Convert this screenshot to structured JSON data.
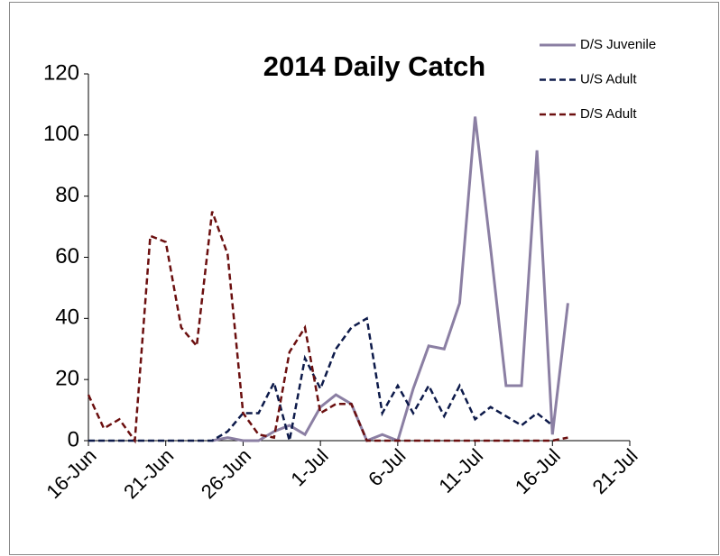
{
  "chart_data": {
    "type": "line",
    "title": "2014 Daily Catch",
    "x": [
      "16-Jun",
      "17-Jun",
      "18-Jun",
      "19-Jun",
      "20-Jun",
      "21-Jun",
      "22-Jun",
      "23-Jun",
      "24-Jun",
      "25-Jun",
      "26-Jun",
      "27-Jun",
      "28-Jun",
      "29-Jun",
      "30-Jun",
      "1-Jul",
      "2-Jul",
      "3-Jul",
      "4-Jul",
      "5-Jul",
      "6-Jul",
      "7-Jul",
      "8-Jul",
      "9-Jul",
      "10-Jul",
      "11-Jul",
      "12-Jul",
      "13-Jul",
      "14-Jul",
      "15-Jul",
      "16-Jul",
      "17-Jul"
    ],
    "series": [
      {
        "name": "D/S Juvenile",
        "color": "#8b7fa3",
        "dash": false,
        "values": [
          null,
          null,
          null,
          null,
          null,
          null,
          null,
          null,
          0,
          1,
          0,
          0,
          3,
          5,
          2,
          11,
          15,
          12,
          0,
          2,
          0,
          17,
          31,
          30,
          45,
          106,
          63,
          18,
          18,
          95,
          2,
          45
        ]
      },
      {
        "name": "U/S Adult",
        "color": "#0d1a4a",
        "dash": true,
        "values": [
          0,
          0,
          0,
          0,
          0,
          0,
          0,
          0,
          0,
          3,
          9,
          9,
          19,
          0,
          27,
          17,
          30,
          37,
          40,
          9,
          18,
          9,
          18,
          8,
          18,
          7,
          11,
          8,
          5,
          9,
          5,
          null
        ]
      },
      {
        "name": "D/S Adult",
        "color": "#6b0f0f",
        "dash": true,
        "values": [
          15,
          4,
          7,
          0,
          67,
          65,
          37,
          31,
          75,
          61,
          9,
          2,
          1,
          29,
          37,
          9,
          12,
          12,
          0,
          0,
          0,
          0,
          0,
          0,
          0,
          0,
          0,
          0,
          0,
          0,
          0,
          1
        ]
      }
    ],
    "xlim": [
      "16-Jun",
      "21-Jul"
    ],
    "xticks": [
      "16-Jun",
      "21-Jun",
      "26-Jun",
      "1-Jul",
      "6-Jul",
      "11-Jul",
      "16-Jul",
      "21-Jul"
    ],
    "ylim": [
      0,
      120
    ],
    "yticks": [
      0,
      20,
      40,
      60,
      80,
      100,
      120
    ],
    "grid": false,
    "legend": "top-right"
  }
}
